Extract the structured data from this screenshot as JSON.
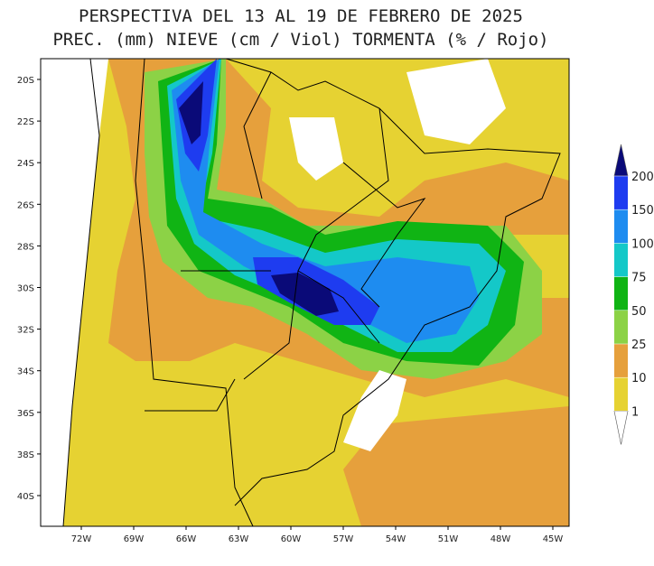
{
  "header": {
    "title_line1": "PERSPECTIVA DEL 13 AL 19 DE FEBRERO DE 2025",
    "title_line2": "PREC. (mm) NIEVE (cm / Viol) TORMENTA (% / Rojo)"
  },
  "map": {
    "lat_labels": [
      "20S",
      "22S",
      "24S",
      "26S",
      "28S",
      "30S",
      "32S",
      "34S",
      "36S",
      "38S",
      "40S"
    ],
    "lon_labels": [
      "72W",
      "69W",
      "66W",
      "63W",
      "60W",
      "57W",
      "54W",
      "51W",
      "48W",
      "45W"
    ]
  },
  "colorbar": {
    "levels": [
      200,
      150,
      100,
      75,
      50,
      25,
      10,
      1
    ],
    "colors": [
      "#0a0a78",
      "#1e3cf0",
      "#1e8cf0",
      "#14c8c8",
      "#10b414",
      "#8cd246",
      "#e6a03c",
      "#e6d232",
      "#ffffff"
    ]
  }
}
